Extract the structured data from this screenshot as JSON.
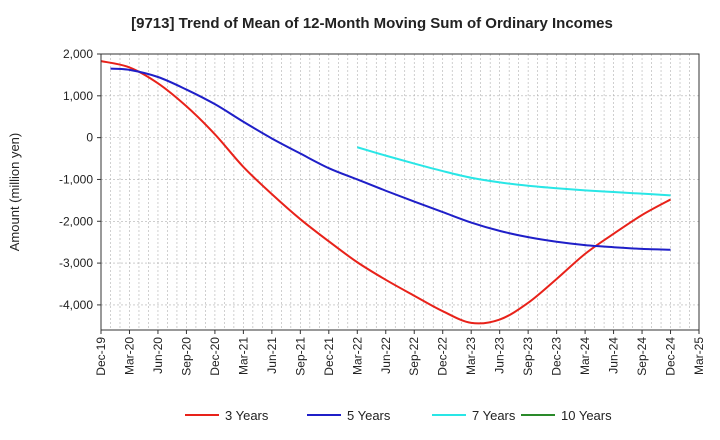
{
  "chart_data": {
    "type": "line",
    "title": "[9713]  Trend of Mean of 12-Month Moving Sum of Ordinary Incomes",
    "xlabel": "",
    "ylabel": "Amount (million yen)",
    "x_ticks": [
      "Dec-19",
      "Mar-20",
      "Jun-20",
      "Sep-20",
      "Dec-20",
      "Mar-21",
      "Jun-21",
      "Sep-21",
      "Dec-21",
      "Mar-22",
      "Jun-22",
      "Sep-22",
      "Dec-22",
      "Mar-23",
      "Jun-23",
      "Sep-23",
      "Dec-23",
      "Mar-24",
      "Jun-24",
      "Sep-24",
      "Dec-24",
      "Mar-25"
    ],
    "y_ticks": [
      2000,
      1000,
      0,
      -1000,
      -2000,
      -3000,
      -4000
    ],
    "y_tick_labels": [
      "2,000",
      "1,000",
      "0",
      "-1,000",
      "-2,000",
      "-3,000",
      "-4,000"
    ],
    "ylim": [
      -4600,
      2000
    ],
    "grid": true,
    "legend_position": "bottom",
    "series": [
      {
        "name": "3 Years",
        "color": "#e8221a",
        "x": [
          "Dec-19",
          "Mar-20",
          "Jun-20",
          "Sep-20",
          "Dec-20",
          "Mar-21",
          "Jun-21",
          "Sep-21",
          "Dec-21",
          "Mar-22",
          "Jun-22",
          "Sep-22",
          "Dec-22",
          "Mar-23",
          "Jun-23",
          "Sep-23",
          "Dec-23",
          "Mar-24",
          "Jun-24",
          "Sep-24",
          "Dec-24"
        ],
        "values": [
          1830,
          1680,
          1300,
          750,
          80,
          -700,
          -1350,
          -1950,
          -2480,
          -2980,
          -3400,
          -3780,
          -4150,
          -4430,
          -4350,
          -3950,
          -3380,
          -2780,
          -2300,
          -1850,
          -1480
        ]
      },
      {
        "name": "5 Years",
        "color": "#1f1fc8",
        "x": [
          "Jan-20",
          "Mar-20",
          "Jun-20",
          "Sep-20",
          "Dec-20",
          "Mar-21",
          "Jun-21",
          "Sep-21",
          "Dec-21",
          "Mar-22",
          "Jun-22",
          "Sep-22",
          "Dec-22",
          "Mar-23",
          "Jun-23",
          "Sep-23",
          "Dec-23",
          "Mar-24",
          "Jun-24",
          "Sep-24",
          "Dec-24"
        ],
        "values": [
          1650,
          1620,
          1450,
          1150,
          800,
          380,
          -20,
          -380,
          -730,
          -1000,
          -1270,
          -1530,
          -1780,
          -2030,
          -2230,
          -2380,
          -2490,
          -2570,
          -2620,
          -2660,
          -2680
        ]
      },
      {
        "name": "7 Years",
        "color": "#29e6e6",
        "x": [
          "Mar-22",
          "Jun-22",
          "Sep-22",
          "Dec-22",
          "Mar-23",
          "Jun-23",
          "Sep-23",
          "Dec-23",
          "Mar-24",
          "Jun-24",
          "Sep-24",
          "Dec-24"
        ],
        "values": [
          -230,
          -430,
          -620,
          -800,
          -960,
          -1070,
          -1150,
          -1210,
          -1260,
          -1300,
          -1340,
          -1380
        ]
      },
      {
        "name": "10 Years",
        "color": "#2a8a2a",
        "x": [],
        "values": []
      }
    ]
  }
}
